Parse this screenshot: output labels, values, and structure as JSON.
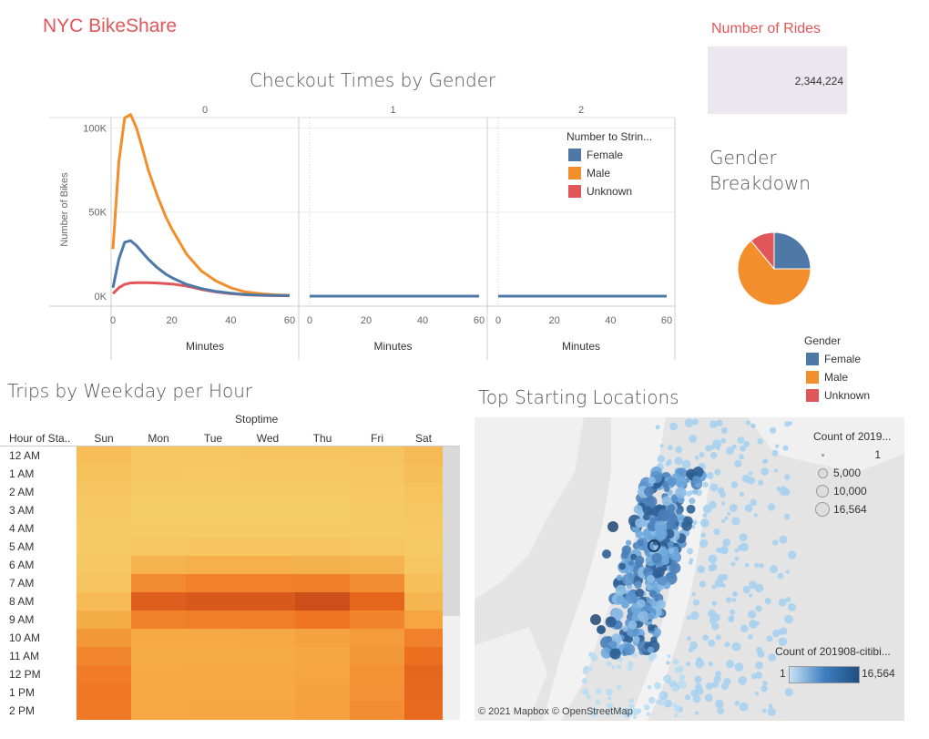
{
  "app_title": "NYC BikeShare",
  "rides": {
    "label": "Number of Rides",
    "value": "2,344,224"
  },
  "checkout": {
    "title": "Checkout Times by Gender",
    "panels": [
      "0",
      "1",
      "2"
    ],
    "y_axis_title": "Number of Bikes",
    "x_axis_title": "Minutes",
    "y_ticks": [
      "100K",
      "50K",
      "0K"
    ],
    "x_ticks": [
      "0",
      "20",
      "40",
      "60"
    ],
    "legend_title": "Number to Strin...",
    "legend": [
      {
        "label": "Female",
        "color": "#4e79a7"
      },
      {
        "label": "Male",
        "color": "#f28e2b"
      },
      {
        "label": "Unknown",
        "color": "#e15759"
      }
    ]
  },
  "gender": {
    "title_line1": "Gender",
    "title_line2": "Breakdown",
    "legend_title": "Gender",
    "legend": [
      {
        "label": "Female",
        "color": "#4e79a7"
      },
      {
        "label": "Male",
        "color": "#f28e2b"
      },
      {
        "label": "Unknown",
        "color": "#e15759"
      }
    ]
  },
  "trips": {
    "title": "Trips by Weekday per Hour",
    "col_group_label": "Stoptime",
    "row_header": "Hour of Sta..",
    "days": [
      "Sun",
      "Mon",
      "Tue",
      "Wed",
      "Thu",
      "Fri",
      "Sat"
    ],
    "hours": [
      "12 AM",
      "1 AM",
      "2 AM",
      "3 AM",
      "4 AM",
      "5 AM",
      "6 AM",
      "7 AM",
      "8 AM",
      "9 AM",
      "10 AM",
      "11 AM",
      "12 PM",
      "1 PM",
      "2 PM"
    ]
  },
  "locations": {
    "title": "Top Starting Locations",
    "size_legend_title": "Count of 2019...",
    "size_legend": [
      "1",
      "5,000",
      "10,000",
      "16,564"
    ],
    "color_legend_title": "Count of 201908-citibi...",
    "color_min": "1",
    "color_max": "16,564",
    "attribution": "© 2021 Mapbox  © OpenStreetMap"
  },
  "chart_data": [
    {
      "type": "line",
      "title": "Checkout Times by Gender",
      "xlabel": "Minutes",
      "ylabel": "Number of Bikes",
      "ylim": [
        0,
        110000
      ],
      "xlim": [
        0,
        60
      ],
      "x": [
        0,
        2,
        4,
        6,
        8,
        10,
        12,
        15,
        18,
        20,
        25,
        30,
        35,
        40,
        45,
        50,
        55,
        60
      ],
      "series": [
        {
          "name": "Female",
          "values": [
            5000,
            22000,
            32000,
            33000,
            30000,
            26000,
            22000,
            17000,
            13000,
            11000,
            7000,
            4500,
            2800,
            1800,
            1000,
            600,
            400,
            300
          ]
        },
        {
          "name": "Male",
          "values": [
            28000,
            80000,
            106000,
            108000,
            100000,
            88000,
            75000,
            60000,
            47000,
            40000,
            25000,
            15000,
            9000,
            5000,
            2500,
            1500,
            800,
            500
          ]
        },
        {
          "name": "Unknown",
          "values": [
            1500,
            5000,
            7000,
            7800,
            8000,
            8000,
            8000,
            7800,
            7500,
            7200,
            6000,
            4000,
            2500,
            1500,
            800,
            500,
            300,
            200
          ]
        }
      ]
    },
    {
      "type": "pie",
      "title": "Gender Breakdown",
      "categories": [
        "Female",
        "Male",
        "Unknown"
      ],
      "values": [
        25,
        64,
        11
      ]
    },
    {
      "type": "heatmap",
      "title": "Trips by Weekday per Hour",
      "categories": [
        "Sun",
        "Mon",
        "Tue",
        "Wed",
        "Thu",
        "Fri",
        "Sat"
      ],
      "rows": [
        "12 AM",
        "1 AM",
        "2 AM",
        "3 AM",
        "4 AM",
        "5 AM",
        "6 AM",
        "7 AM",
        "8 AM",
        "9 AM",
        "10 AM",
        "11 AM",
        "12 PM",
        "1 PM",
        "2 PM"
      ],
      "values": [
        [
          0.2,
          0.1,
          0.1,
          0.11,
          0.12,
          0.13,
          0.23
        ],
        [
          0.15,
          0.08,
          0.07,
          0.08,
          0.08,
          0.1,
          0.19
        ],
        [
          0.11,
          0.05,
          0.05,
          0.05,
          0.05,
          0.07,
          0.14
        ],
        [
          0.08,
          0.04,
          0.04,
          0.04,
          0.04,
          0.05,
          0.1
        ],
        [
          0.06,
          0.05,
          0.05,
          0.05,
          0.05,
          0.06,
          0.07
        ],
        [
          0.05,
          0.1,
          0.11,
          0.11,
          0.11,
          0.1,
          0.06
        ],
        [
          0.08,
          0.31,
          0.33,
          0.33,
          0.32,
          0.3,
          0.1
        ],
        [
          0.13,
          0.6,
          0.65,
          0.65,
          0.66,
          0.58,
          0.18
        ],
        [
          0.22,
          0.85,
          0.88,
          0.88,
          0.95,
          0.8,
          0.28
        ],
        [
          0.37,
          0.64,
          0.67,
          0.67,
          0.71,
          0.63,
          0.45
        ],
        [
          0.52,
          0.4,
          0.4,
          0.41,
          0.46,
          0.5,
          0.65
        ],
        [
          0.62,
          0.38,
          0.38,
          0.39,
          0.43,
          0.52,
          0.75
        ],
        [
          0.68,
          0.4,
          0.41,
          0.41,
          0.44,
          0.55,
          0.8
        ],
        [
          0.7,
          0.41,
          0.42,
          0.42,
          0.46,
          0.56,
          0.79
        ],
        [
          0.69,
          0.42,
          0.43,
          0.43,
          0.47,
          0.58,
          0.78
        ]
      ]
    }
  ]
}
